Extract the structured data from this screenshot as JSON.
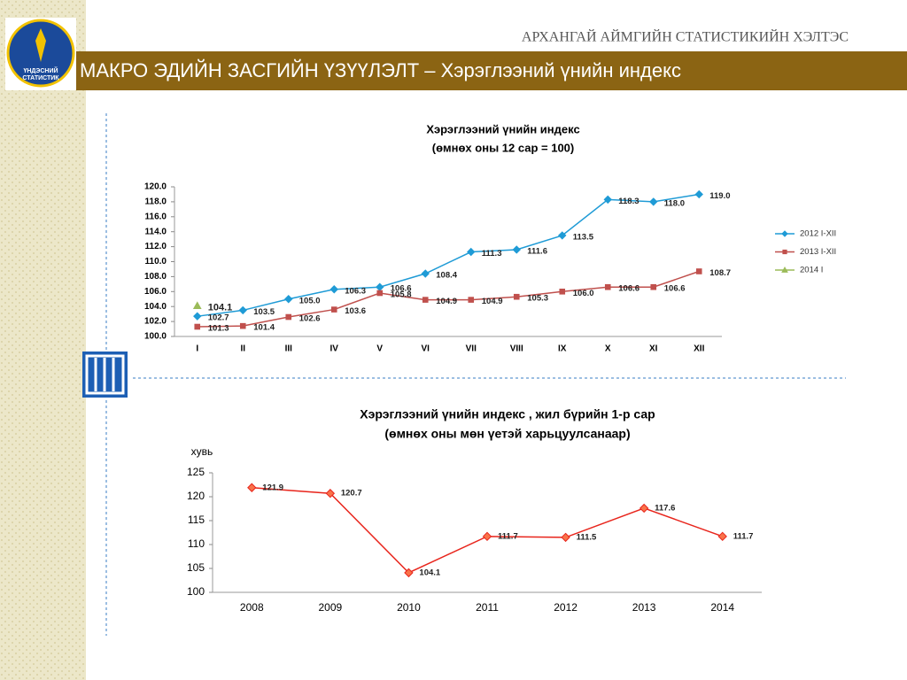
{
  "header": {
    "org": "АРХАНГАЙ АЙМГИЙН СТАТИСТИКИЙН ХЭЛТЭС",
    "title": "МАКРО ЭДИЙН ЗАСГИЙН ҮЗҮҮЛЭЛТ – Хэрэглээний үнийн индекс",
    "logo_text": [
      "ҮНДЭСНИЙ",
      "СТАТИСТИК"
    ]
  },
  "chart_data": [
    {
      "type": "line",
      "title": "Хэрэглээний үнийн индекс",
      "subtitle": "(өмнөх оны 12 сар = 100)",
      "categories": [
        "I",
        "II",
        "III",
        "IV",
        "V",
        "VI",
        "VII",
        "VIII",
        "IX",
        "X",
        "XI",
        "XII"
      ],
      "ylim": [
        100,
        120
      ],
      "yticks": [
        {
          "value": 100,
          "label": "100.0"
        },
        {
          "value": 102,
          "label": "102.0"
        },
        {
          "value": 104,
          "label": "104.0"
        },
        {
          "value": 106,
          "label": "106.0"
        },
        {
          "value": 108,
          "label": "108.0"
        },
        {
          "value": 110,
          "label": "110.0"
        },
        {
          "value": 112,
          "label": "112.0"
        },
        {
          "value": 114,
          "label": "114.0"
        },
        {
          "value": 116,
          "label": "116.0"
        },
        {
          "value": 118,
          "label": "118.0"
        },
        {
          "value": 120,
          "label": "120.0"
        }
      ],
      "legend": "right",
      "series": [
        {
          "name": "2012 I-XII",
          "color": "#1f9bd6",
          "marker": "diamond",
          "values": [
            102.7,
            103.5,
            105,
            106.3,
            106.6,
            108.4,
            111.3,
            111.6,
            113.5,
            118.3,
            118,
            119
          ],
          "value_labels": [
            "102.7",
            "103.5",
            "105.0",
            "106.3",
            "106.6",
            "108.4",
            "111.3",
            "111.6",
            "113.5",
            "118.3",
            "118.0",
            "119.0"
          ]
        },
        {
          "name": "2013 I-XII",
          "color": "#c0504d",
          "marker": "square",
          "values": [
            101.3,
            101.4,
            102.6,
            103.6,
            105.8,
            104.9,
            104.9,
            105.3,
            106,
            106.6,
            106.6,
            108.7
          ],
          "value_labels": [
            "101.3",
            "101.4",
            "102.6",
            "103.6",
            "105.8",
            "104.9",
            "104.9",
            "105.3",
            "106.0",
            "106.6",
            "106.6",
            "108.7"
          ]
        },
        {
          "name": "2014 I",
          "color": "#9bbb59",
          "marker": "triangle",
          "values": [
            104.1,
            null,
            null,
            null,
            null,
            null,
            null,
            null,
            null,
            null,
            null,
            null
          ],
          "value_labels": [
            "104.1",
            null,
            null,
            null,
            null,
            null,
            null,
            null,
            null,
            null,
            null,
            null
          ]
        }
      ]
    },
    {
      "type": "line",
      "title": "Хэрэглээний үнийн индекс , жил бүрийн 1-р сар",
      "subtitle": "(өмнөх оны мөн үетэй харьцуулсанаар)",
      "y_label": "хувь",
      "categories": [
        "2008",
        "2009",
        "2010",
        "2011",
        "2012",
        "2013",
        "2014"
      ],
      "ylim": [
        100,
        125
      ],
      "yticks": [
        100,
        105,
        110,
        115,
        120,
        125
      ],
      "series": [
        {
          "color": "#e8251c",
          "marker": "diamond",
          "marker_fill": "#f9734a",
          "values": [
            121.9,
            120.7,
            104.1,
            111.7,
            111.5,
            117.6,
            111.7
          ]
        }
      ]
    }
  ]
}
